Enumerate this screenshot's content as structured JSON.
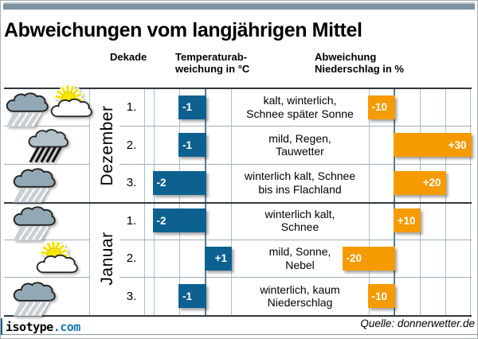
{
  "title": "Abweichungen vom langjährigen Mittel",
  "header": {
    "dekade": "Dekade",
    "temp_line1": "Temperaturab-",
    "temp_line2": "weichung in °C",
    "precip_line1": "Abweichung",
    "precip_line2": "Niederschlag in %"
  },
  "months": [
    {
      "name": "Dezember"
    },
    {
      "name": "Januar"
    }
  ],
  "rows": [
    {
      "month": "Dezember",
      "dekade": "1.",
      "icons": [
        "snow-cloud",
        "sun-cloud"
      ],
      "temp": -1,
      "temp_label": "-1",
      "precip": -10,
      "precip_label": "-10",
      "desc_line1": "kalt, winterlich,",
      "desc_line2": "Schnee später Sonne"
    },
    {
      "month": "Dezember",
      "dekade": "2.",
      "icons": [
        "rain-cloud"
      ],
      "temp": -1,
      "temp_label": "-1",
      "precip": 30,
      "precip_label": "+30",
      "desc_line1": "mild, Regen,",
      "desc_line2": "Tauwetter"
    },
    {
      "month": "Dezember",
      "dekade": "3.",
      "icons": [
        "snow-cloud"
      ],
      "temp": -2,
      "temp_label": "-2",
      "precip": 20,
      "precip_label": "+20",
      "desc_line1": "winterlich kalt, Schnee",
      "desc_line2": "bis ins Flachland"
    },
    {
      "month": "Januar",
      "dekade": "1.",
      "icons": [
        "snow-cloud"
      ],
      "temp": -2,
      "temp_label": "-2",
      "precip": 10,
      "precip_label": "+10",
      "desc_line1": "winterlich kalt,",
      "desc_line2": "Schnee"
    },
    {
      "month": "Januar",
      "dekade": "2.",
      "icons": [
        "sun-cloud"
      ],
      "temp": 1,
      "temp_label": "+1",
      "precip": -20,
      "precip_label": "-20",
      "desc_line1": "mild, Sonne,",
      "desc_line2": "Nebel"
    },
    {
      "month": "Januar",
      "dekade": "3.",
      "icons": [
        "snow-cloud"
      ],
      "temp": -1,
      "temp_label": "-1",
      "precip": -10,
      "precip_label": "-10",
      "desc_line1": "winterlich, kaum",
      "desc_line2": "Niederschlag"
    }
  ],
  "footer": {
    "logo_black": "isotype",
    "logo_blue": ".com",
    "source": "Quelle: donnerwetter.de"
  },
  "colors": {
    "temp_bar": "#0d6191",
    "precip_bar": "#f59b00",
    "grid_light": "#abc0cf",
    "zero_line": "#5d7d93",
    "separator_dark": "#33373c",
    "topbar": "#7d93a1",
    "logo_blue": "#1878b8",
    "cloud_gray": "#93a8b5",
    "rain_cloud_gray": "#b3c1ca",
    "sun_yellow": "#f8e504"
  },
  "chart_data": {
    "type": "bar",
    "orientation": "horizontal",
    "title": "Abweichungen vom langjährigen Mittel",
    "categories": [
      "Dezember 1.",
      "Dezember 2.",
      "Dezember 3.",
      "Januar 1.",
      "Januar 2.",
      "Januar 3."
    ],
    "series": [
      {
        "name": "Temperaturabweichung in °C",
        "values": [
          -1,
          -1,
          -2,
          -2,
          1,
          -1
        ],
        "color": "#0d6191",
        "axis_min": -2,
        "axis_max": 1,
        "gridline_step": 1
      },
      {
        "name": "Abweichung Niederschlag in %",
        "values": [
          -10,
          30,
          20,
          10,
          -20,
          -10
        ],
        "color": "#f59b00",
        "axis_min": -10,
        "axis_max": 30,
        "gridline_step": 10
      }
    ],
    "row_annotations": [
      "kalt, winterlich, Schnee später Sonne",
      "mild, Regen, Tauwetter",
      "winterlich kalt, Schnee bis ins Flachland",
      "winterlich kalt, Schnee",
      "mild, Sonne, Nebel",
      "winterlich, kaum Niederschlag"
    ],
    "grid": true,
    "legend_position": "none",
    "source": "Quelle: donnerwetter.de"
  }
}
